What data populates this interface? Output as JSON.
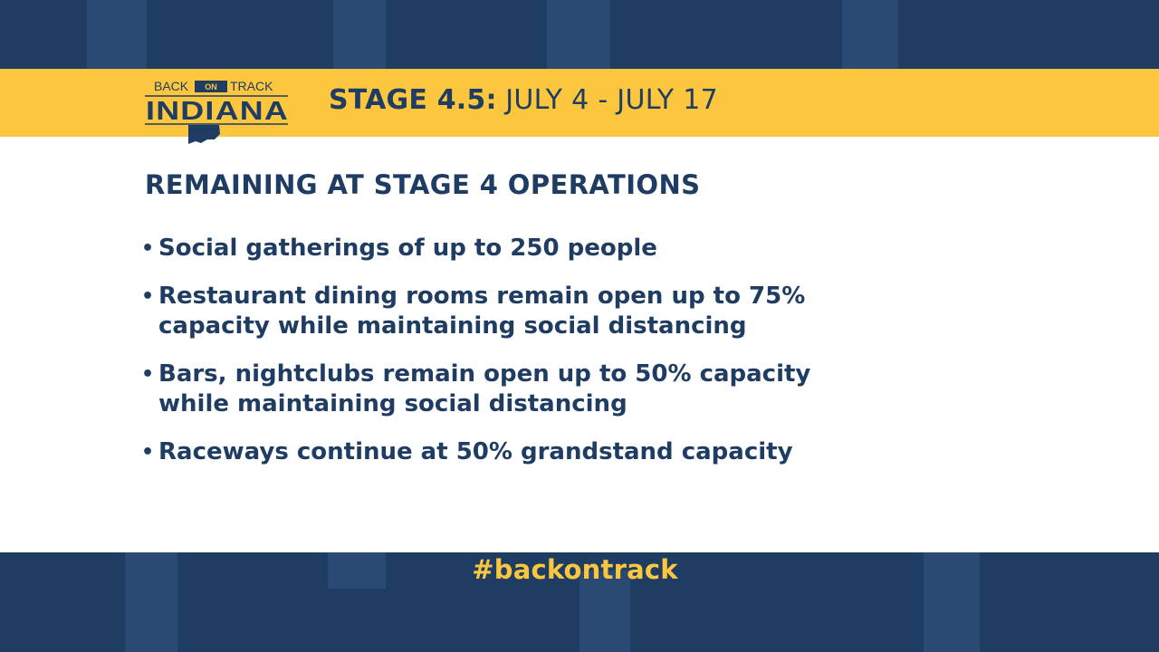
{
  "logo": {
    "line1_left": "BACK",
    "line1_middle": "ON",
    "line1_right": "TRACK",
    "line2": "INDIANA"
  },
  "header": {
    "stage_label": "STAGE 4.5:",
    "stage_dates": "JULY 4 - JULY 17"
  },
  "section": {
    "heading": "REMAINING AT STAGE 4 OPERATIONS"
  },
  "bullets": [
    "Social gatherings of up to 250 people",
    "Restaurant dining rooms remain open up to 75% capacity while maintaining social distancing",
    "Bars, nightclubs remain open up to 50% capacity while maintaining social distancing",
    "Raceways continue at 50% grandstand capacity"
  ],
  "footer": {
    "hashtag": "#backontrack"
  },
  "colors": {
    "navy": "#1f3c63",
    "gold": "#fcc73f",
    "white": "#ffffff"
  }
}
